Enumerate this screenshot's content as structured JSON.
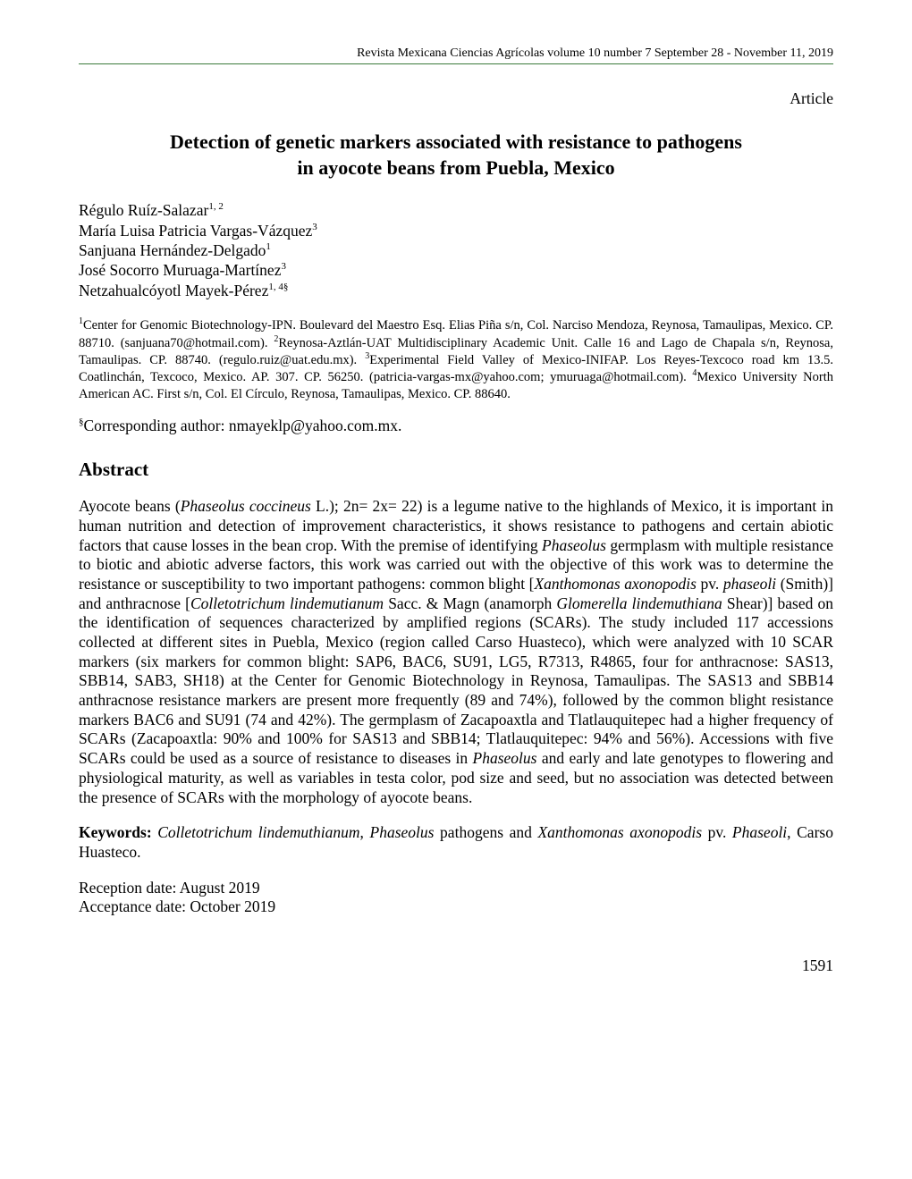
{
  "journal_header": "Revista Mexicana Ciencias Agrícolas   volume 10   number 7   September 28 - November 11, 2019",
  "article_type": "Article",
  "title_line1": "Detection of genetic markers associated with resistance to pathogens",
  "title_line2": "in ayocote beans from Puebla, Mexico",
  "authors": {
    "a1": {
      "name": "Régulo Ruíz-Salazar",
      "sup": "1, 2"
    },
    "a2": {
      "name": "María Luisa Patricia Vargas-Vázquez",
      "sup": "3"
    },
    "a3": {
      "name": "Sanjuana Hernández-Delgado",
      "sup": "1"
    },
    "a4": {
      "name": "José Socorro Muruaga-Martínez",
      "sup": "3"
    },
    "a5": {
      "name": "Netzahualcóyotl Mayek-Pérez",
      "sup": "1, 4§"
    }
  },
  "aff": {
    "s1": "1",
    "t1": "Center for Genomic Biotechnology-IPN. Boulevard del Maestro Esq. Elias Piña s/n, Col. Narciso Mendoza, Reynosa, Tamaulipas, Mexico. CP. 88710. (sanjuana70@hotmail.com). ",
    "s2": "2",
    "t2": "Reynosa-Aztlán-UAT Multidisciplinary Academic Unit. Calle 16 and Lago de Chapala s/n, Reynosa, Tamaulipas. CP. 88740. (regulo.ruiz@uat.edu.mx). ",
    "s3": "3",
    "t3": "Experimental Field Valley of Mexico-INIFAP. Los Reyes-Texcoco road km 13.5. Coatlinchán, Texcoco, Mexico. AP. 307. CP. 56250. (patricia-vargas-mx@yahoo.com; ymuruaga@hotmail.com). ",
    "s4": "4",
    "t4": "Mexico University North American AC. First s/n, Col. El Círculo, Reynosa, Tamaulipas, Mexico. CP. 88640."
  },
  "corresponding_sup": "§",
  "corresponding": "Corresponding author: nmayeklp@yahoo.com.mx.",
  "abstract_heading": "Abstract",
  "abstract": {
    "p1a": "Ayocote beans (",
    "p1b": "Phaseolus coccineus",
    "p1c": " L.); 2n= 2x= 22) is a legume native to the highlands of Mexico, it is important in human nutrition and detection of improvement characteristics, it shows resistance to pathogens and certain abiotic factors that cause losses in the bean crop. With the premise of identifying ",
    "p1d": "Phaseolus",
    "p1e": " germplasm with multiple resistance to biotic and abiotic adverse factors, this work was carried out with the objective of this work was to determine the resistance or susceptibility to two important pathogens: common blight [",
    "p1f": "Xanthomonas axonopodis",
    "p1g": " pv. ",
    "p1h": "phaseoli",
    "p1i": " (Smith)] and anthracnose [",
    "p1j": "Colletotrichum lindemutianum",
    "p1k": " Sacc. & Magn (anamorph ",
    "p1l": "Glomerella lindemuthiana",
    "p1m": " Shear)] based on the identification of sequences characterized by amplified regions (SCARs). The study included 117 accessions collected at different sites in Puebla, Mexico (region called Carso Huasteco), which were analyzed with 10 SCAR markers (six markers for common blight: SAP6, BAC6, SU91, LG5, R7313, R4865, four for anthracnose: SAS13, SBB14, SAB3, SH18) at the Center for Genomic Biotechnology in Reynosa, Tamaulipas. The SAS13 and SBB14 anthracnose resistance markers are present more frequently (89 and 74%), followed by the common blight resistance markers BAC6 and SU91 (74 and 42%). The germplasm of Zacapoaxtla and Tlatlauquitepec had a higher frequency of SCARs (Zacapoaxtla: 90% and 100% for SAS13 and SBB14; Tlatlauquitepec: 94% and 56%). Accessions with five SCARs could be used as a source of resistance to diseases in ",
    "p1n": "Phaseolus",
    "p1o": " and early and late genotypes to flowering and physiological maturity, as well as variables in testa color, pod size and seed, but no association was detected between the presence of SCARs with the morphology of ayocote beans."
  },
  "kw": {
    "label": "Keywords:",
    "k1": " Colletotrichum lindemuthianum",
    "k2": ", ",
    "k3": "Phaseolus",
    "k4": " pathogens and ",
    "k5": "Xanthomonas axonopodis",
    "k6": " pv. ",
    "k7": "Phaseoli",
    "k8": ", Carso Huasteco."
  },
  "dates": {
    "reception": "Reception date: August 2019",
    "acceptance": "Acceptance date: October 2019"
  },
  "page_number": "1591",
  "colors": {
    "rule": "#3a7a3a",
    "text": "#000000",
    "bg": "#ffffff"
  },
  "typography": {
    "body_family": "Times New Roman",
    "header_size_pt": 10.5,
    "title_size_pt": 16,
    "body_size_pt": 12.5,
    "affil_size_pt": 11
  }
}
